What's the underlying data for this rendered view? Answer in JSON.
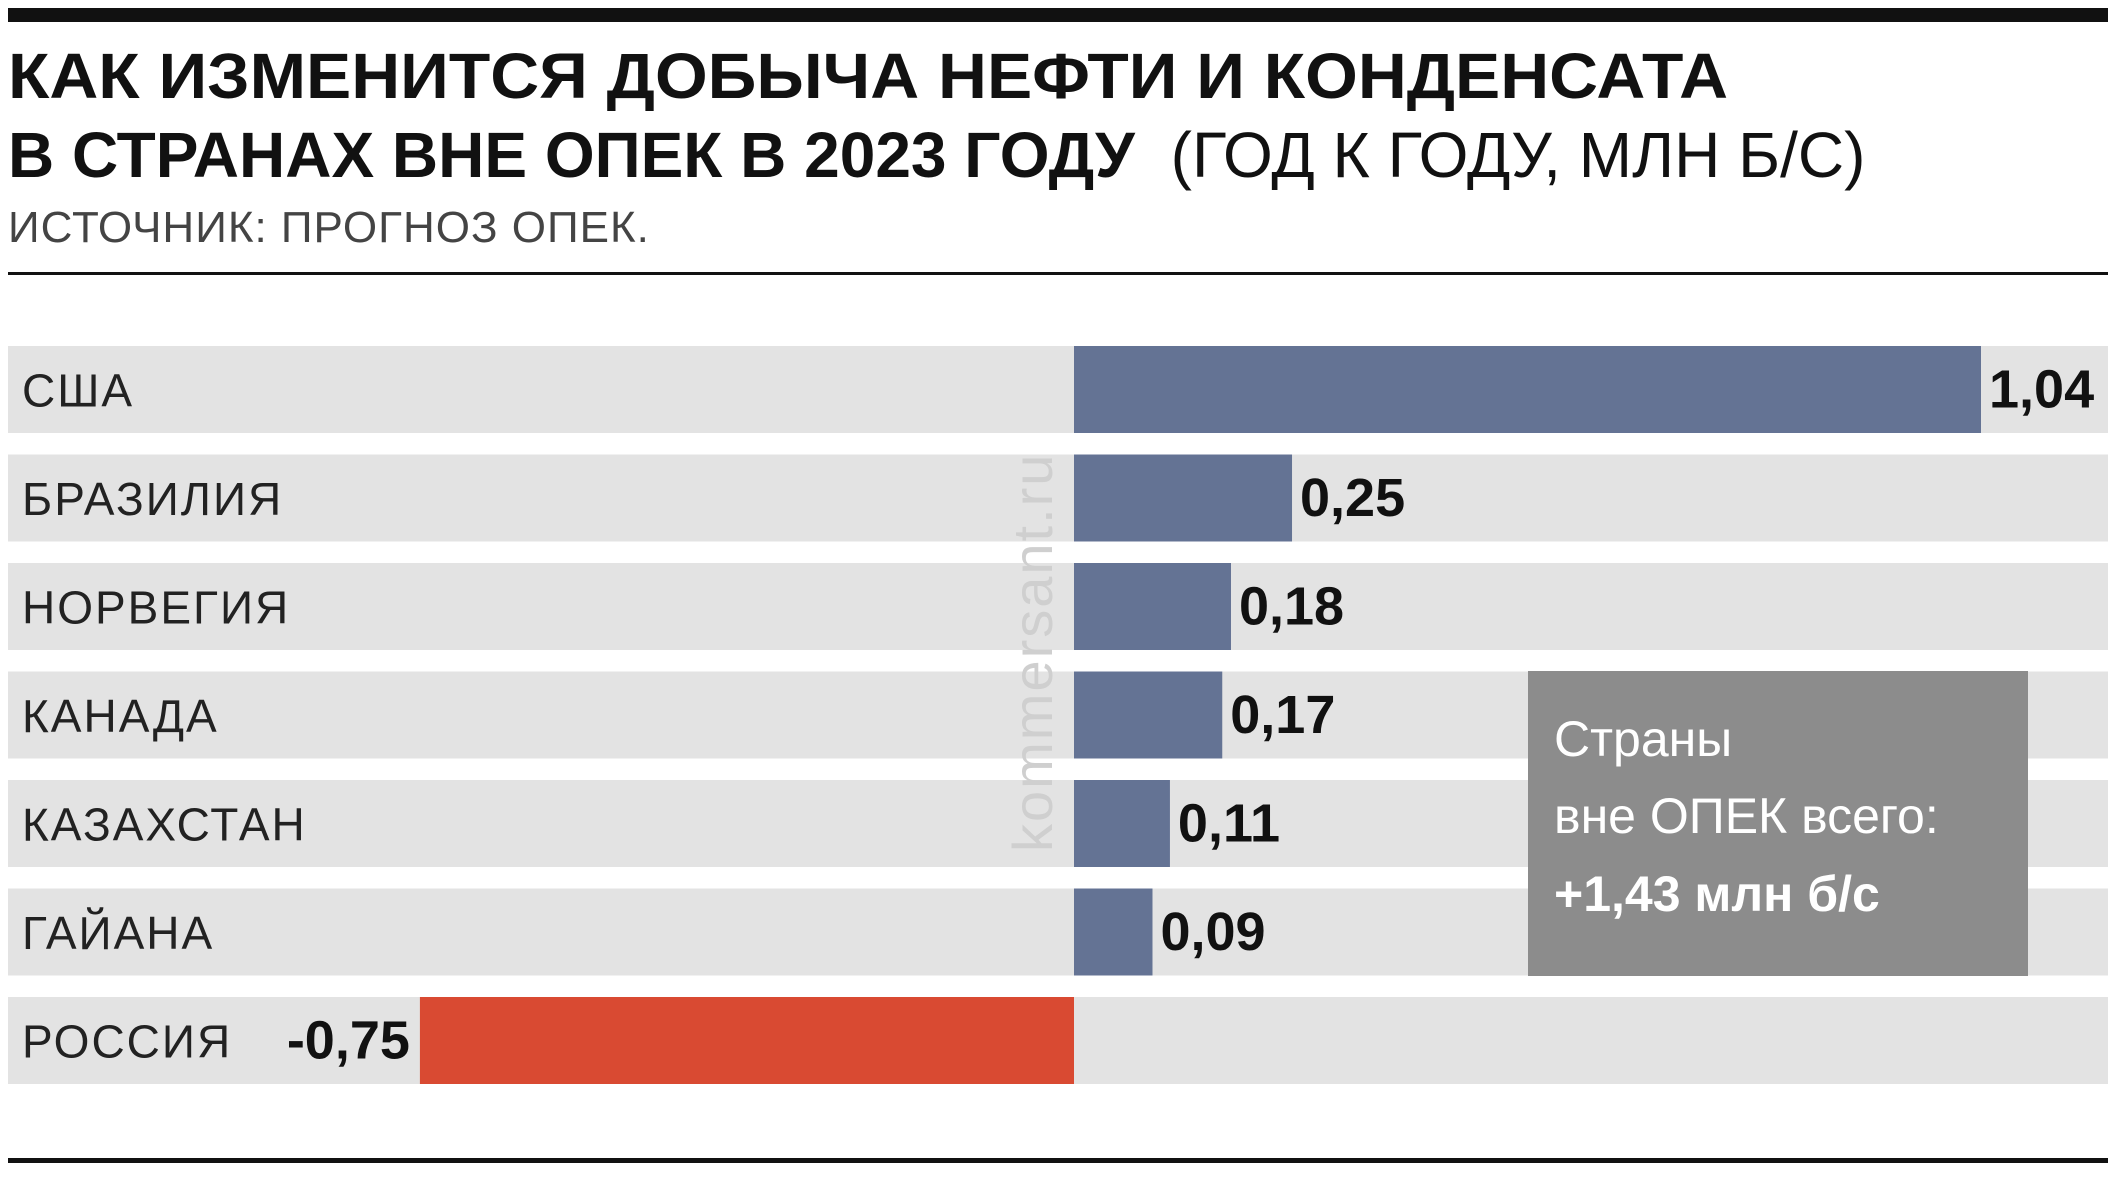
{
  "header": {
    "title_line1": "КАК ИЗМЕНИТСЯ ДОБЫЧА НЕФТИ И КОНДЕНСАТА",
    "title_line2": "В СТРАНАХ ВНЕ ОПЕК В 2023 ГОДУ",
    "units": "(ГОД К ГОДУ, МЛН Б/С)",
    "source": "ИСТОЧНИК: ПРОГНОЗ ОПЕК."
  },
  "watermark": "kommersant.ru",
  "summary_box": {
    "line1": "Страны",
    "line2": "вне ОПЕК всего:",
    "line3": "+1,43 млн б/с"
  },
  "colors": {
    "positive_bar": "#647394",
    "negative_bar": "#d94a32",
    "row_band": "#e3e3e3",
    "summary_box": "#8c8c8c",
    "rule": "#111111"
  },
  "chart_data": {
    "type": "bar",
    "orientation": "horizontal",
    "title": "КАК ИЗМЕНИТСЯ ДОБЫЧА НЕФТИ И КОНДЕНСАТА В СТРАНАХ ВНЕ ОПЕК В 2023 ГОДУ",
    "categories": [
      "США",
      "БРАЗИЛИЯ",
      "НОРВЕГИЯ",
      "КАНАДА",
      "КАЗАХСТАН",
      "ГАЙАНА",
      "РОССИЯ"
    ],
    "values": [
      1.04,
      0.25,
      0.18,
      0.17,
      0.11,
      0.09,
      -0.75
    ],
    "value_labels": [
      "1,04",
      "0,25",
      "0,18",
      "0,17",
      "0,11",
      "0,09",
      "-0,75"
    ],
    "xlim": [
      -0.75,
      1.04
    ],
    "grid": false,
    "legend": "none"
  }
}
